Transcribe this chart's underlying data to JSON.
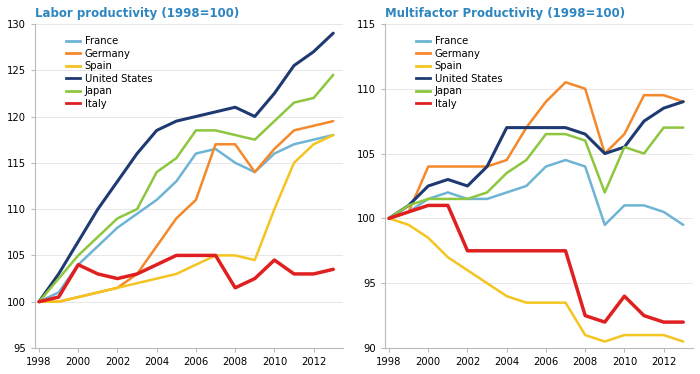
{
  "years": [
    1998,
    1999,
    2000,
    2001,
    2002,
    2003,
    2004,
    2005,
    2006,
    2007,
    2008,
    2009,
    2010,
    2011,
    2012,
    2013
  ],
  "labor": {
    "France": [
      100,
      101,
      104,
      106,
      108,
      109.5,
      111,
      113,
      116,
      116.5,
      115,
      114,
      116,
      117,
      117.5,
      118
    ],
    "Germany": [
      100,
      100,
      100.5,
      101,
      101.5,
      103,
      106,
      109,
      111,
      117,
      117,
      114,
      116.5,
      118.5,
      119,
      119.5
    ],
    "Spain": [
      100,
      100,
      100.5,
      101,
      101.5,
      102,
      102.5,
      103,
      104,
      105,
      105,
      104.5,
      110,
      115,
      117,
      118
    ],
    "United States": [
      100,
      103,
      106.5,
      110,
      113,
      116,
      118.5,
      119.5,
      120,
      120.5,
      121,
      120,
      122.5,
      125.5,
      127,
      129
    ],
    "Japan": [
      100,
      102.5,
      105,
      107,
      109,
      110,
      114,
      115.5,
      118.5,
      118.5,
      118,
      117.5,
      119.5,
      121.5,
      122,
      124.5
    ],
    "Italy": [
      100,
      100.5,
      104,
      103,
      102.5,
      103,
      104,
      105,
      105,
      105,
      101.5,
      102.5,
      104.5,
      103,
      103,
      103.5
    ]
  },
  "multifactor": {
    "France": [
      100,
      100.5,
      101.5,
      102,
      101.5,
      101.5,
      102,
      102.5,
      104,
      104.5,
      104,
      99.5,
      101,
      101,
      100.5,
      99.5
    ],
    "Germany": [
      100,
      100.5,
      104,
      104,
      104,
      104,
      104.5,
      107,
      109,
      110.5,
      110,
      105,
      106.5,
      109.5,
      109.5,
      109
    ],
    "Spain": [
      100,
      99.5,
      98.5,
      97,
      96,
      95,
      94,
      93.5,
      93.5,
      93.5,
      91,
      90.5,
      91,
      91,
      91,
      90.5
    ],
    "United States": [
      100,
      101,
      102.5,
      103,
      102.5,
      104,
      107,
      107,
      107,
      107,
      106.5,
      105,
      105.5,
      107.5,
      108.5,
      109
    ],
    "Japan": [
      100,
      101,
      101.5,
      101.5,
      101.5,
      102,
      103.5,
      104.5,
      106.5,
      106.5,
      106,
      102,
      105.5,
      105,
      107,
      107
    ],
    "Italy": [
      100,
      100.5,
      101,
      101,
      97.5,
      97.5,
      97.5,
      97.5,
      97.5,
      97.5,
      92.5,
      92,
      94,
      92.5,
      92,
      92
    ]
  },
  "colors": {
    "France": "#6EB4D4",
    "Germany": "#F4882A",
    "Spain": "#F4C520",
    "United States": "#1F3A72",
    "Japan": "#8DC63F",
    "Italy": "#E02020"
  },
  "linewidths": {
    "France": 1.8,
    "Germany": 1.8,
    "Spain": 1.8,
    "United States": 2.2,
    "Japan": 1.8,
    "Italy": 2.5
  },
  "title_left": "Labor productivity (1998=100)",
  "title_right": "Multifactor Productivity (1998=100)",
  "title_color": "#2E86C1",
  "ylim_left": [
    95,
    130
  ],
  "ylim_right": [
    90,
    115
  ],
  "yticks_left": [
    95,
    100,
    105,
    110,
    115,
    120,
    125,
    130
  ],
  "yticks_right": [
    90,
    95,
    100,
    105,
    110,
    115
  ],
  "xticks": [
    1998,
    2000,
    2002,
    2004,
    2006,
    2008,
    2010,
    2012
  ],
  "xlim": [
    1997.8,
    2013.5
  ]
}
